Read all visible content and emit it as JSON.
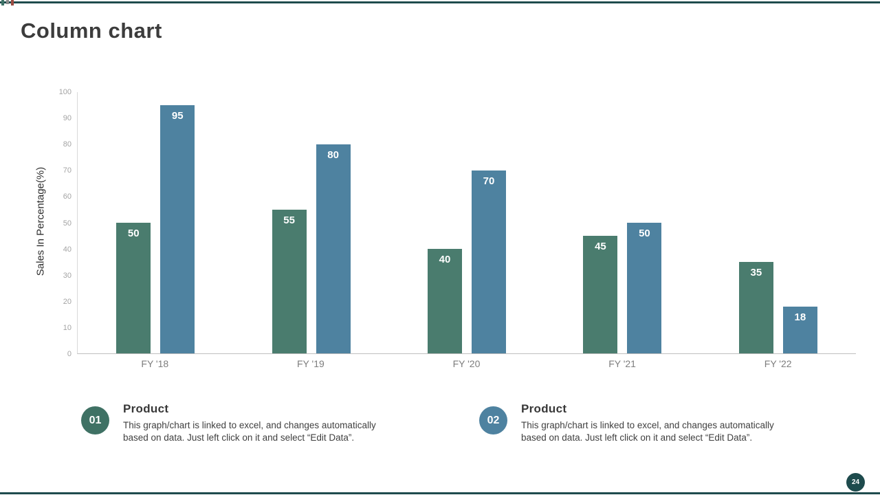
{
  "slide": {
    "title": "Column chart",
    "page_number": "24"
  },
  "decorations": {
    "border_color": "#1e4b4d",
    "corner_marks": [
      "#3e7468",
      "#8c8c8c",
      "#9c4b41"
    ]
  },
  "chart_data": {
    "type": "bar",
    "title": "Column chart",
    "categories": [
      "FY '18",
      "FY '19",
      "FY '20",
      "FY '21",
      "FY '22"
    ],
    "series": [
      {
        "name": "Product 01",
        "color": "#4a7c6e",
        "values": [
          50,
          55,
          40,
          45,
          35
        ]
      },
      {
        "name": "Product 02",
        "color": "#4e82a0",
        "values": [
          95,
          80,
          70,
          50,
          18
        ]
      }
    ],
    "xlabel": "",
    "ylabel": "Sales In Percentage(%)",
    "ylim": [
      0,
      100
    ],
    "yticks": [
      0,
      10,
      20,
      30,
      40,
      50,
      60,
      70,
      80,
      90,
      100
    ],
    "grid": false,
    "legend_position": "none",
    "bar_value_labels": true
  },
  "callouts": [
    {
      "number": "01",
      "heading": "Product",
      "color": "#3f7164",
      "text": "This graph/chart is linked to excel, and changes automatically based on data. Just left click on it and select “Edit Data”."
    },
    {
      "number": "02",
      "heading": "Product",
      "color": "#4e82a0",
      "text": "This graph/chart is linked to excel, and changes automatically based on data. Just left click on it and select “Edit Data”."
    }
  ]
}
